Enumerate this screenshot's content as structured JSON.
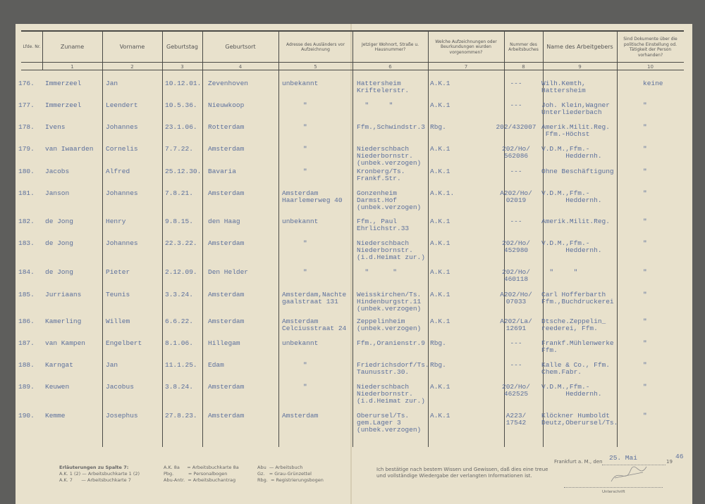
{
  "headers": [
    "Lfde. Nr.",
    "Zuname",
    "Vorname",
    "Geburtstag",
    "Geburtsort",
    "Adresse des Ausländers vor Aufzeichnung",
    "Jetziger Wohnort, Straße u. Hausnummer?",
    "Welche Aufzeichnungen oder Beurkundungen wurden vorgenommen?",
    "Nummer des Arbeitsbuches",
    "Name des Arbeitgebers",
    "Sind Dokumente über die politische Einstellung od. Tätigkeit der Person vorhanden?"
  ],
  "column_numbers": [
    "1",
    "2",
    "3",
    "4",
    "5",
    "6",
    "7",
    "8",
    "9",
    "10"
  ],
  "rows": [
    {
      "nr": "176.",
      "zuname": "Immerzeel",
      "vorname": "Jan",
      "geburtstag": "10.12.01.",
      "geburtsort": "Zevenhoven",
      "adresse": "unbekannt",
      "wohnort": "Hattersheim\nKriftelerstr.",
      "aufz": "A.K.1",
      "nummer": "---",
      "arbeitgeber": "Wilh.Kemth,\nHattersheim",
      "dok": "keine"
    },
    {
      "nr": "177.",
      "zuname": "Immerzeel",
      "vorname": "Leendert",
      "geburtstag": "10.5.36.",
      "geburtsort": "Nieuwkoop",
      "adresse": "\"",
      "wohnort": "  \"     \"",
      "aufz": "A.K.1",
      "nummer": "---",
      "arbeitgeber": "Joh. Klein,Wagner\nUnterliederbach",
      "dok": "\""
    },
    {
      "nr": "178.",
      "zuname": "Ivens",
      "vorname": "Johannes",
      "geburtstag": "23.1.06.",
      "geburtsort": "Rotterdam",
      "adresse": "\"",
      "wohnort": "Ffm.,Schwindstr.3",
      "aufz": "Rbg.",
      "nummer": "202/432007",
      "arbeitgeber": "Amerik.Milit.Reg.\n Ffm.-Höchst",
      "dok": "\""
    },
    {
      "nr": "179.",
      "zuname": "van Iwaarden",
      "vorname": "Cornelis",
      "geburtstag": "7.7.22.",
      "geburtsort": "Amsterdam",
      "adresse": "\"",
      "wohnort": "Niederschbach\nNiederbornstr.\n(unbek.verzogen)",
      "aufz": "A.K.1",
      "nummer": "202/Ho/\n562086",
      "arbeitgeber": "V.D.M.,Ffm.-\n      Heddernh.",
      "dok": "\""
    },
    {
      "nr": "180.",
      "zuname": "Jacobs",
      "vorname": "Alfred",
      "geburtstag": "25.12.30.",
      "geburtsort": "Bavaria",
      "adresse": "\"",
      "wohnort": "Kronberg/Ts.\nFrankf.Str.",
      "aufz": "A.K.1",
      "nummer": "---",
      "arbeitgeber": "Ohne Beschäftigung",
      "dok": "\""
    },
    {
      "nr": "181.",
      "zuname": "Janson",
      "vorname": "Johannes",
      "geburtstag": "7.8.21.",
      "geburtsort": "Amsterdam",
      "adresse": "Amsterdam\nHaarlemerweg 40",
      "wohnort": "Gonzenheim\nDarmst.Hof\n(unbek.verzogen)",
      "aufz": "A.K.1.",
      "nummer": "A202/Ho/\n02019",
      "arbeitgeber": "V.D.M.,Ffm.-\n      Heddernh.",
      "dok": "\""
    },
    {
      "nr": "182.",
      "zuname": "de Jong",
      "vorname": "Henry",
      "geburtstag": "9.8.15.",
      "geburtsort": "den Haag",
      "adresse": "unbekannt",
      "wohnort": "Ffm., Paul\nEhrlichstr.33",
      "aufz": "A.K.1",
      "nummer": "---",
      "arbeitgeber": "Amerik.Milit.Reg.",
      "dok": "\""
    },
    {
      "nr": "183.",
      "zuname": "de Jong",
      "vorname": "Johannes",
      "geburtstag": "22.3.22.",
      "geburtsort": "Amsterdam",
      "adresse": "\"",
      "wohnort": "Niederschbach\nNiederbornstr.\n(i.d.Heimat zur.)",
      "aufz": "A.K.1",
      "nummer": "202/Ho/\n452980",
      "arbeitgeber": "V.D.M.,Ffm.-\n      Heddernh.",
      "dok": "\""
    },
    {
      "nr": "184.",
      "zuname": "de Jong",
      "vorname": "Pieter",
      "geburtstag": "2.12.09.",
      "geburtsort": "Den Helder",
      "adresse": "\"",
      "wohnort": "  \"      \"",
      "aufz": "A.K.1",
      "nummer": "202/Ho/\n460118",
      "arbeitgeber": "  \"     \"",
      "dok": "\""
    },
    {
      "nr": "185.",
      "zuname": "Jurriaans",
      "vorname": "Teunis",
      "geburtstag": "3.3.24.",
      "geburtsort": "Amsterdam",
      "adresse": "Amsterdam,Nachte\ngaalstraat 131",
      "wohnort": "Weisskirchen/Ts.\nHindenburgstr.11\n(unbek.verzogen)",
      "aufz": "A.K.1",
      "nummer": "A202/Ho/\n07033",
      "arbeitgeber": "Carl Hofferbarth\nFfm.,Buchdruckerei",
      "dok": "\""
    },
    {
      "nr": "186.",
      "zuname": "Kamerling",
      "vorname": "Willem",
      "geburtstag": "6.6.22.",
      "geburtsort": "Amsterdam",
      "adresse": "Amsterdam\nCelciusstraat 24",
      "wohnort": "Zeppelinheim\n(unbek.verzogen)",
      "aufz": "A.K.1",
      "nummer": "A202/La/\n12691",
      "arbeitgeber": "Dtsche.Zeppelin_\nreederei, Ffm.",
      "dok": "\""
    },
    {
      "nr": "187.",
      "zuname": "van Kampen",
      "vorname": "Engelbert",
      "geburtstag": "8.1.06.",
      "geburtsort": "Hillegam",
      "adresse": "unbekannt",
      "wohnort": "Ffm.,Oranienstr.9",
      "aufz": "Rbg.",
      "nummer": "---",
      "arbeitgeber": "Frankf.Mühlenwerke\nFfm.",
      "dok": "\""
    },
    {
      "nr": "188.",
      "zuname": "Karngat",
      "vorname": "Jan",
      "geburtstag": "11.1.25.",
      "geburtsort": "Edam",
      "adresse": "\"",
      "wohnort": "Friedrichsdorf/Ts.\nTaunusstr.30.",
      "aufz": "Rbg.",
      "nummer": "---",
      "arbeitgeber": "Kalle & Co., Ffm.\nChem.Fabr.",
      "dok": "\""
    },
    {
      "nr": "189.",
      "zuname": "Keuwen",
      "vorname": "Jacobus",
      "geburtstag": "3.8.24.",
      "geburtsort": "Amsterdam",
      "adresse": "\"",
      "wohnort": "Niederschbach\nNiederbornstr.\n(i.d.Heimat zur.)",
      "aufz": "A.K.1",
      "nummer": "202/Ho/\n462525",
      "arbeitgeber": "V.D.M.,Ffm.-\n      Heddernh.",
      "dok": "\""
    },
    {
      "nr": "190.",
      "zuname": "Kemme",
      "vorname": "Josephus",
      "geburtstag": "27.8.23.",
      "geburtsort": "Amsterdam",
      "adresse": "Amsterdam",
      "wohnort": "Oberursel/Ts.\ngem.Lager 3\n(unbek.verzogen)",
      "aufz": "A.K.1",
      "nummer": "A223/\n17542",
      "arbeitgeber": "Klöckner Humboldt\nDeutz,Oberursel/Ts.",
      "dok": "\""
    }
  ],
  "footer": {
    "legend_title": "Erläuterungen zu Spalte 7:",
    "legend_col1": [
      "A.K. 1 (2) — Arbeitsbuchkarte 1 (2)",
      "A.K. 7      — Arbeitsbuchkarte 7"
    ],
    "legend_col2": [
      "A.K. 8a     = Arbeitsbuchkarte 8a",
      "Pbg.          = Personalbogen",
      "Abu-Antr.  = Arbeitsbuchantrag"
    ],
    "legend_col3": [
      "Abu  — Arbeitsbuch",
      "Gz.   = Grau-Grünzettel",
      "Rbg.  = Registrierungsbogen"
    ],
    "confirmation": "Ich bestätige nach bestem Wissen und Gewissen, daß dies eine treue\nund vollständige Wiedergabe der verlangten Informationen ist.",
    "place_label": "Frankfurt a. M., den",
    "date_filled": "25. Mai",
    "year_prefix": "19",
    "year_filled": "46",
    "signature_label": "Unterschrift"
  }
}
